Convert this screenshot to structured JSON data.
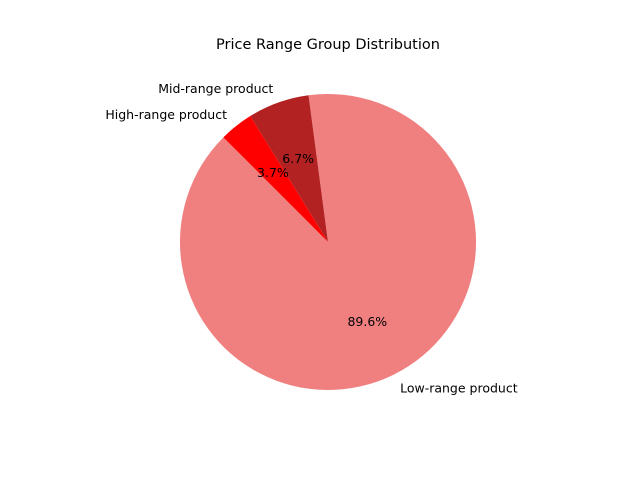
{
  "chart_data": {
    "type": "pie",
    "title": "Price Range Group Distribution",
    "slices": [
      {
        "label": "Low-range product",
        "value": 89.6,
        "pct_label": "89.6%",
        "color": "#F08080"
      },
      {
        "label": "Mid-range product",
        "value": 6.7,
        "pct_label": "6.7%",
        "color": "#B22222"
      },
      {
        "label": "High-range product",
        "value": 3.7,
        "pct_label": "3.7%",
        "color": "#FF0000"
      }
    ],
    "legend": "none"
  }
}
